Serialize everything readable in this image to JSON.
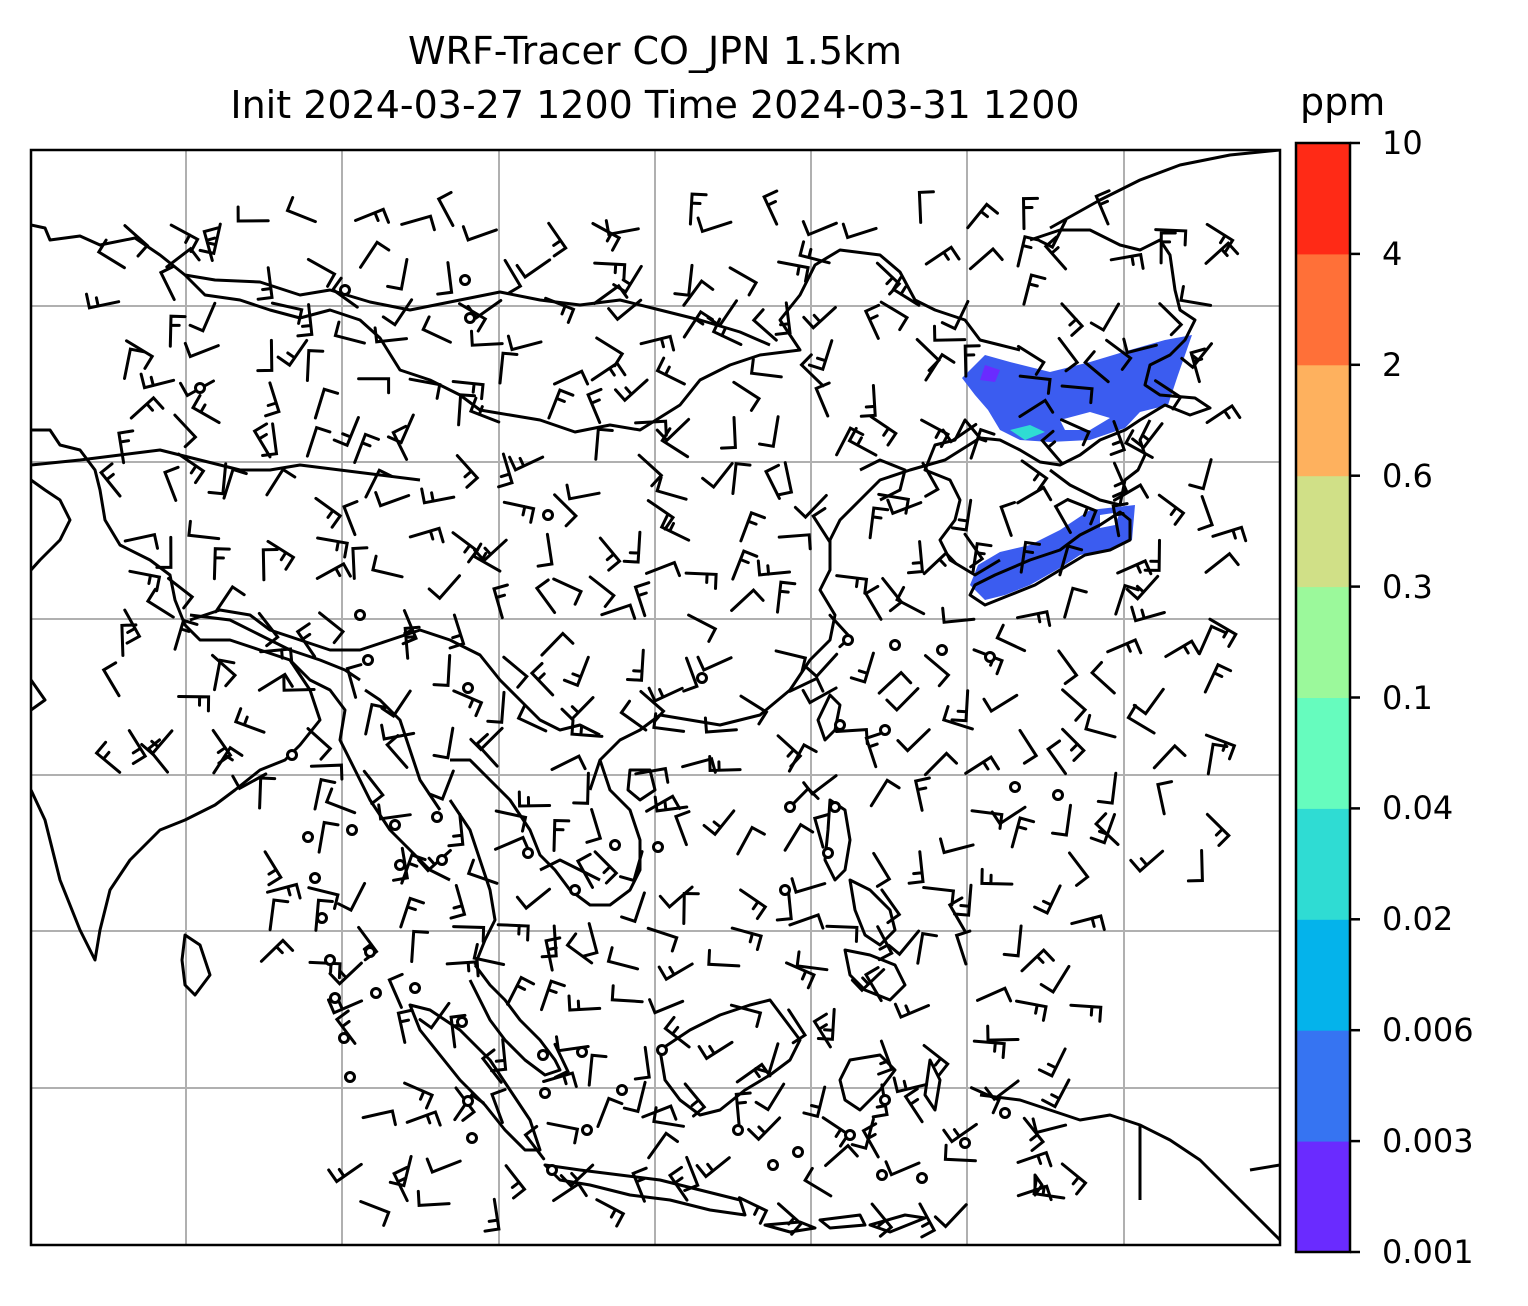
{
  "title": {
    "line1": "WRF-Tracer CO_JPN 1.5km",
    "line2": "Init 2024-03-27 1200 Time 2024-03-31 1200"
  },
  "colorbar": {
    "unit": "ppm",
    "levels": [
      "0.001",
      "0.003",
      "0.006",
      "0.02",
      "0.04",
      "0.1",
      "0.3",
      "0.6",
      "2",
      "4",
      "10"
    ],
    "colors": [
      "#6a2bff",
      "#3674f2",
      "#04b3eb",
      "#2fdcd3",
      "#66fcbe",
      "#9bf99b",
      "#d0e087",
      "#feb15e",
      "#ff7038",
      "#ff2a16"
    ]
  },
  "map": {
    "grid": "on",
    "plume_color": "#3b5cf0",
    "coast_color": "#000000"
  }
}
